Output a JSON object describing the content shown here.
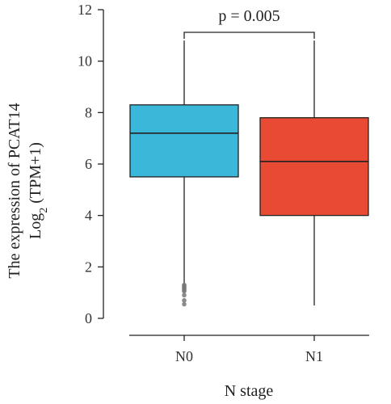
{
  "chart_data": {
    "type": "box",
    "xlabel": "N stage",
    "ylabel_line1": "The expression of PCAT14",
    "ylabel_line2_prefix": "Log",
    "ylabel_line2_sub": "2",
    "ylabel_line2_suffix": " (TPM+1)",
    "ylim": [
      0,
      12
    ],
    "yticks": [
      0,
      2,
      4,
      6,
      8,
      10,
      12
    ],
    "grid": false,
    "annotation": "p = 0.005",
    "categories": [
      "N0",
      "N1"
    ],
    "series": [
      {
        "category": "N0",
        "whisker_low": 1.3,
        "q1": 5.5,
        "median": 7.2,
        "q3": 8.3,
        "whisker_high": 10.8,
        "outliers": [
          1.3,
          1.25,
          1.2,
          1.15,
          1.1,
          1.05,
          0.9,
          0.7,
          0.55
        ],
        "color": "#3BB8D9"
      },
      {
        "category": "N1",
        "whisker_low": 0.5,
        "q1": 4.0,
        "median": 6.1,
        "q3": 7.8,
        "whisker_high": 10.8,
        "outliers": [],
        "color": "#E84A33"
      }
    ]
  }
}
